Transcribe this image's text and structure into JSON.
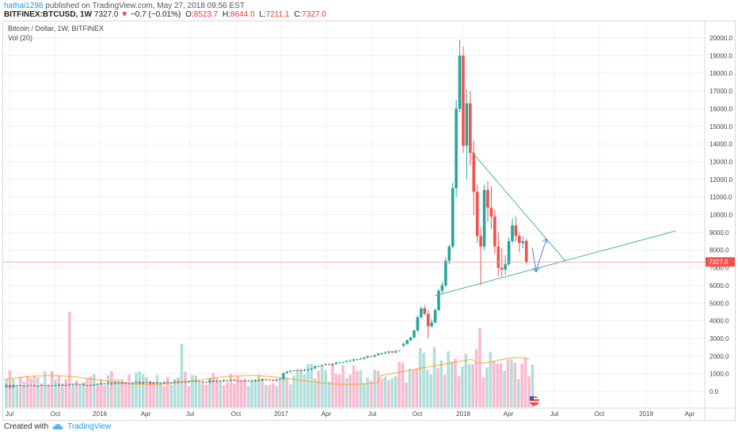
{
  "header": {
    "user": "hathai1298",
    "published": "published on TradingView.com, May 27, 2018 09:56 EST",
    "symbol": "BITFINEX:BTCUSD, 1W",
    "last": "7327.0",
    "change": "−0.7 (−0.01%)",
    "open_label": "O:",
    "open": "8523.7",
    "high_label": "H:",
    "high": "8644.0",
    "low_label": "L:",
    "low": "7211.1",
    "close_label": "C:",
    "close": "7327.0"
  },
  "legend": {
    "title": "Bitcoin / Dollar, 1W, BITFINEX",
    "indicator": "Vol (20)"
  },
  "price_badge": "7327.0",
  "footer": {
    "created_with": "Created with",
    "brand": "TradingView"
  },
  "colors": {
    "up": "#26a69a",
    "down": "#ef5350",
    "up_vol": "#b2dfdb",
    "down_vol": "#f8bbd0",
    "trend": "#4db6ac",
    "ma": "#ff9800",
    "arrow": "#5b7fd6",
    "price_line": "#ef9a9a"
  },
  "chart_data": {
    "type": "candlestick",
    "title": "Bitcoin / Dollar, 1W, BITFINEX",
    "ylim": [
      -800,
      20600
    ],
    "y_ticks": [
      "0.0",
      "1000.0",
      "2000.0",
      "3000.0",
      "4000.0",
      "5000.0",
      "6000.0",
      "7000.0",
      "8000.0",
      "9000.0",
      "10000.0",
      "11000.0",
      "12000.0",
      "13000.0",
      "14000.0",
      "15000.0",
      "16000.0",
      "17000.0",
      "18000.0",
      "19000.0",
      "20000.0"
    ],
    "x_ticks": [
      "Jul",
      "Oct",
      "2016",
      "Apr",
      "Jul",
      "Oct",
      "2017",
      "Apr",
      "Jul",
      "Oct",
      "2018",
      "Apr",
      "Jul",
      "Oct",
      "2019",
      "Apr"
    ],
    "last_price": 7327.0,
    "ohlc_2017_2018": [
      [
        2600,
        2780,
        2500,
        2700
      ],
      [
        2700,
        2950,
        2650,
        2900
      ],
      [
        2900,
        3100,
        2850,
        3050
      ],
      [
        3050,
        3500,
        3000,
        3450
      ],
      [
        3450,
        4300,
        3400,
        4200
      ],
      [
        4200,
        4800,
        4150,
        4700
      ],
      [
        4700,
        4900,
        4300,
        4400
      ],
      [
        4400,
        4600,
        3000,
        3700
      ],
      [
        3700,
        4100,
        3600,
        3900
      ],
      [
        3900,
        4700,
        3850,
        4600
      ],
      [
        4600,
        5800,
        4550,
        5700
      ],
      [
        5700,
        6200,
        5500,
        6000
      ],
      [
        6000,
        7600,
        5900,
        7400
      ],
      [
        7400,
        8300,
        7200,
        8200
      ],
      [
        8200,
        11800,
        8100,
        11500
      ],
      [
        11500,
        16500,
        11000,
        16000
      ],
      [
        16000,
        19900,
        15800,
        19000
      ],
      [
        19000,
        19500,
        13500,
        13900
      ],
      [
        13900,
        17100,
        12000,
        16300
      ],
      [
        16300,
        17000,
        12800,
        13500
      ],
      [
        13500,
        14200,
        10000,
        11300
      ],
      [
        11300,
        11700,
        8400,
        8800
      ],
      [
        8800,
        9300,
        6000,
        8200
      ],
      [
        8200,
        11700,
        8000,
        11400
      ],
      [
        11400,
        11900,
        9600,
        10400
      ],
      [
        10400,
        11600,
        9200,
        9900
      ],
      [
        9900,
        10300,
        7800,
        8200
      ],
      [
        8200,
        9000,
        6500,
        7000
      ],
      [
        7000,
        8100,
        6500,
        6900
      ],
      [
        6900,
        7700,
        6600,
        7200
      ],
      [
        7200,
        8700,
        7100,
        8500
      ],
      [
        8500,
        9800,
        8400,
        9400
      ],
      [
        9400,
        9900,
        8500,
        8800
      ],
      [
        8800,
        9000,
        7900,
        8400
      ],
      [
        8400,
        8800,
        8100,
        8500
      ],
      [
        8523.7,
        8644,
        7211.1,
        7327
      ]
    ]
  }
}
